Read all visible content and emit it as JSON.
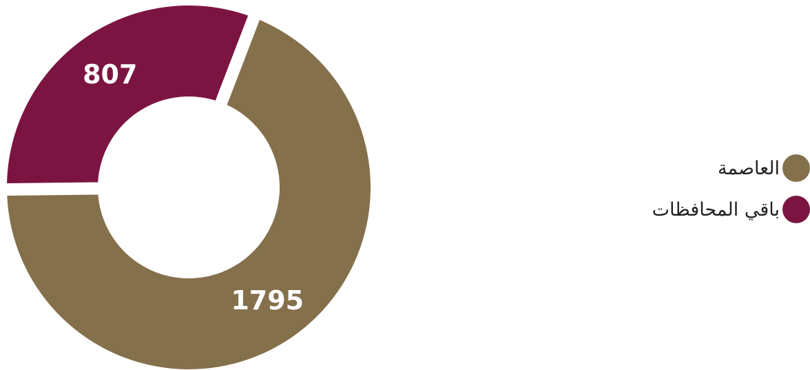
{
  "chart_data": {
    "type": "pie",
    "categories": [
      "العاصمة",
      "باقي المحافظات"
    ],
    "values": [
      1795,
      807
    ],
    "data_labels": [
      "1795",
      "807"
    ],
    "colors": [
      "#85704c",
      "#7c1441"
    ],
    "donut": true,
    "legend_position": "right"
  },
  "legend": {
    "items": [
      {
        "label": "العاصمة",
        "color": "#85704c"
      },
      {
        "label": "باقي المحافظات",
        "color": "#7c1441"
      }
    ]
  }
}
